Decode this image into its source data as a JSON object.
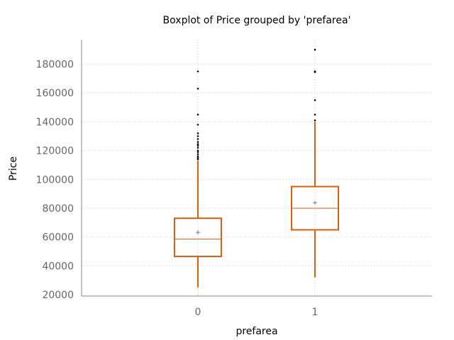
{
  "chart_data": {
    "type": "boxplot",
    "title": "Boxplot of Price grouped by 'prefarea'",
    "xlabel": "prefarea",
    "ylabel": "Price",
    "categories": [
      "0",
      "1"
    ],
    "ylim": [
      19000,
      197000
    ],
    "yticks": [
      20000,
      40000,
      60000,
      80000,
      100000,
      120000,
      140000,
      160000,
      180000
    ],
    "grid": true,
    "colors": {
      "box": "#d95f0e",
      "mean": "#7b6fb0",
      "outlier": "#000000",
      "grid": "#cccccc",
      "spine": "#888888"
    },
    "boxes": [
      {
        "category": "0",
        "whisker_low": 25000,
        "q1": 46500,
        "median": 58500,
        "q3": 73000,
        "whisker_high": 113000,
        "mean": 63200,
        "outliers": [
          114000,
          115000,
          116000,
          117500,
          119000,
          120000,
          122000,
          123500,
          124500,
          126000,
          128000,
          130000,
          132000,
          138000,
          145000,
          163000,
          175000
        ]
      },
      {
        "category": "1",
        "whisker_low": 32000,
        "q1": 65000,
        "median": 80000,
        "q3": 95000,
        "whisker_high": 140000,
        "mean": 83800,
        "outliers": [
          141000,
          145000,
          155000,
          174500,
          175000,
          190000
        ]
      }
    ]
  }
}
